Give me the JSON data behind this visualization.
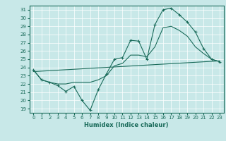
{
  "xlabel": "Humidex (Indice chaleur)",
  "bg_color": "#c8e8e8",
  "line_color": "#1a6b5a",
  "xlim": [
    -0.5,
    23.5
  ],
  "ylim": [
    18.5,
    31.5
  ],
  "yticks": [
    19,
    20,
    21,
    22,
    23,
    24,
    25,
    26,
    27,
    28,
    29,
    30,
    31
  ],
  "xticks": [
    0,
    1,
    2,
    3,
    4,
    5,
    6,
    7,
    8,
    9,
    10,
    11,
    12,
    13,
    14,
    15,
    16,
    17,
    18,
    19,
    20,
    21,
    22,
    23
  ],
  "series1_x": [
    0,
    1,
    2,
    3,
    4,
    5,
    6,
    7,
    8,
    9,
    10,
    11,
    12,
    13,
    14,
    15,
    16,
    17,
    18,
    19,
    20,
    21,
    22,
    23
  ],
  "series1_y": [
    23.7,
    22.5,
    22.2,
    21.8,
    21.1,
    21.7,
    20.0,
    18.8,
    21.3,
    23.2,
    25.0,
    25.2,
    27.3,
    27.2,
    25.0,
    29.2,
    31.0,
    31.2,
    30.4,
    29.5,
    28.3,
    26.3,
    25.0,
    24.7
  ],
  "series2_x": [
    0,
    1,
    2,
    3,
    4,
    5,
    6,
    7,
    8,
    9,
    10,
    11,
    12,
    13,
    14,
    15,
    16,
    17,
    18,
    19,
    20,
    21,
    22,
    23
  ],
  "series2_y": [
    23.7,
    22.5,
    22.2,
    22.0,
    22.0,
    22.2,
    22.2,
    22.2,
    22.5,
    23.0,
    24.2,
    24.5,
    25.5,
    25.5,
    25.3,
    26.5,
    28.8,
    29.0,
    28.5,
    27.8,
    26.5,
    25.7,
    25.0,
    24.7
  ],
  "series3_x": [
    0,
    23
  ],
  "series3_y": [
    23.5,
    24.8
  ]
}
